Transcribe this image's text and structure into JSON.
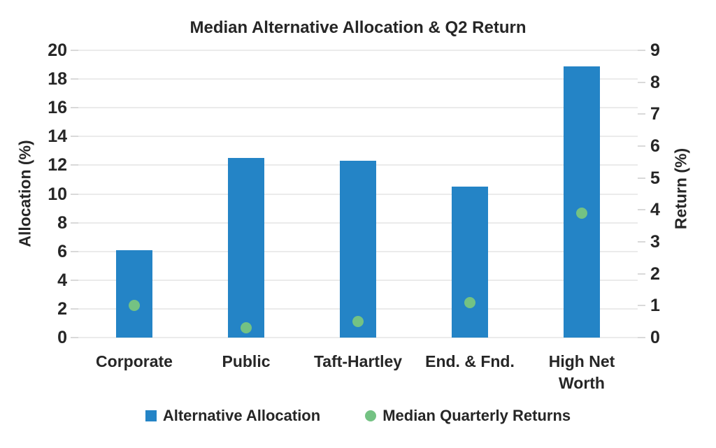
{
  "chart_data": {
    "type": "combo bar+scatter",
    "title": "Median Alternative Allocation & Q2 Return",
    "categories": [
      "Corporate",
      "Public",
      "Taft-Hartley",
      "End. & Fnd.",
      "High Net Worth"
    ],
    "series": [
      {
        "name": "Alternative Allocation",
        "type": "bar",
        "axis": "left",
        "values": [
          6.1,
          12.5,
          12.3,
          10.5,
          18.9
        ],
        "color": "#2484c6"
      },
      {
        "name": "Median Quarterly Returns",
        "type": "scatter",
        "axis": "right",
        "values": [
          1.0,
          0.3,
          0.5,
          1.1,
          3.9
        ],
        "color": "#74c283"
      }
    ],
    "left_axis": {
      "label": "Allocation (%)",
      "min": 0,
      "max": 20,
      "step": 2
    },
    "right_axis": {
      "label": "Return (%)",
      "min": 0,
      "max": 9,
      "step": 1
    },
    "grid": true,
    "gridline_color": "#ebebeb",
    "tick_mark_color": "#d9d9d9",
    "text_color": "#262626",
    "background": "#ffffff",
    "legend_position": "bottom"
  }
}
